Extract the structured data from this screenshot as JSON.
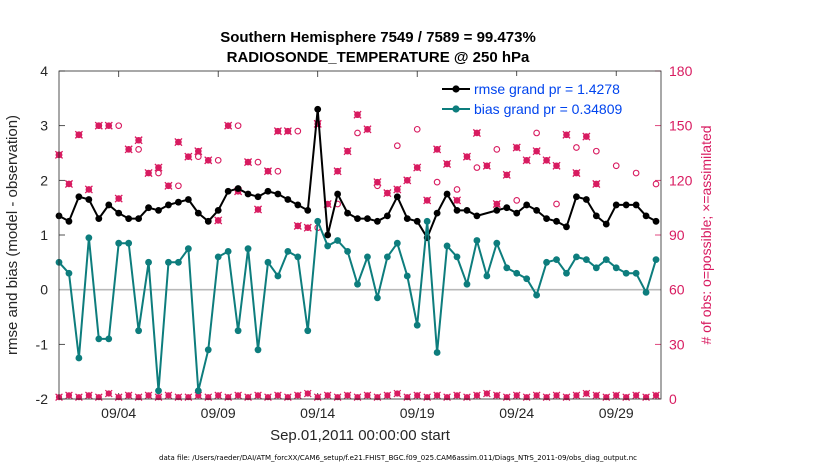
{
  "chart_data": {
    "type": "line",
    "title": "Southern Hemisphere 7549 / 7589 = 99.473%",
    "subtitle": "RADIOSONDE_TEMPERATURE @ 250 hPa",
    "xlabel": "Sep.01,2011 00:00:00 start",
    "ylabel": "rmse and bias (model - observation)",
    "y2label": "# of obs: o=possible; ×=assimilated",
    "xlim": [
      0.5,
      30.75
    ],
    "ylim": [
      -2,
      4
    ],
    "y2lim": [
      0,
      180
    ],
    "xticks": [
      3.5,
      8.5,
      13.5,
      18.5,
      23.5,
      28.5
    ],
    "xtick_labels": [
      "09/04",
      "09/09",
      "09/14",
      "09/19",
      "09/24",
      "09/29"
    ],
    "yticks": [
      -2,
      -1,
      0,
      1,
      2,
      3,
      4
    ],
    "ytick_labels": [
      "-2",
      "-1",
      "0",
      "1",
      "2",
      "3",
      "4"
    ],
    "y2ticks": [
      0,
      30,
      60,
      90,
      120,
      150,
      180
    ],
    "y2tick_labels": [
      "0",
      "30",
      "60",
      "90",
      "120",
      "150",
      "180"
    ],
    "x_start": 0.5,
    "x_step": 0.5,
    "series": [
      {
        "name": "rmse grand pr = 1.4278",
        "color": "#000000",
        "values": [
          1.35,
          1.25,
          1.7,
          1.65,
          1.3,
          1.55,
          1.4,
          1.3,
          1.3,
          1.5,
          1.45,
          1.55,
          1.6,
          1.65,
          1.4,
          1.25,
          1.45,
          1.8,
          1.85,
          1.75,
          1.7,
          1.8,
          1.75,
          1.65,
          1.55,
          1.45,
          1.55,
          1.35,
          1.3,
          1.4,
          1.3,
          1.3,
          1.25,
          1.35,
          1.7,
          1.3,
          1.25,
          1.3,
          1.2,
          1.7,
          1.45,
          1.45,
          1.35,
          null,
          1.45,
          1.5,
          1.4,
          1.55,
          1.45,
          1.3,
          1.25,
          1.55,
          1.45,
          1.3,
          1.35,
          1.2,
          1.55,
          1.55,
          1.55,
          1.35,
          1.25,
          1.2,
          1.15,
          1.0,
          1.45,
          1.35,
          1.45,
          1.45,
          1.55,
          1.5,
          1.3,
          1.25,
          1.2,
          1.1,
          1.5,
          1.6,
          1.3,
          1.25,
          1.2,
          1.1,
          1.25,
          1.4,
          1.55,
          1.6,
          1.55,
          1.45,
          1.4,
          1.3,
          1.2,
          1.35,
          1.45,
          1.35,
          1.25,
          1.3,
          1.25,
          1.25,
          1.35,
          1.5,
          1.4,
          1.3,
          1.2,
          1.15,
          1.2,
          1.3,
          1.6,
          1.45,
          1.3,
          1.25,
          1.4,
          1.5,
          1.45,
          1.55,
          1.6,
          1.45,
          1.4,
          1.45,
          1.3,
          1.2,
          1.35,
          1.3,
          1.25,
          1.25
        ],
        "overrides": [
          [
            13.5,
            3.3
          ],
          [
            14.5,
            1.75
          ],
          [
            14.0,
            1.0
          ],
          [
            19.0,
            0.95
          ],
          [
            19.5,
            1.4
          ],
          [
            20.0,
            1.75
          ],
          [
            26.0,
            1.15
          ],
          [
            26.5,
            1.7
          ],
          [
            27.0,
            1.65
          ]
        ]
      },
      {
        "name": "bias grand pr = 0.34809",
        "color": "#0d7d7d",
        "values": [
          0.5,
          0.3,
          -1.25,
          0.95,
          0.3,
          -0.9,
          0.6,
          0.85,
          0.95,
          0.5,
          -0.75,
          0.5,
          0.5,
          0.5,
          -1.85,
          0.6,
          0.6,
          0.6,
          0.55,
          0.75,
          -1.1,
          0.5,
          0.5,
          0.7,
          0.35,
          -0.75,
          0.5,
          0.6,
          0.55,
          0.7,
          0.1,
          0.6,
          -0.15,
          0.6,
          0.85,
          0.25,
          0.8,
          1.25,
          0.3,
          0.8,
          0.6,
          0.1,
          0.9,
          0.25,
          0.3,
          0.4,
          0.3,
          0.2,
          0.05,
          0.5,
          0.55,
          0.4,
          0.5,
          0.35,
          0.4,
          0.55,
          0.4,
          0.3,
          0.3,
          -0.05,
          0.45,
          0.45,
          0.05,
          -0.65,
          0.3,
          0.2,
          0.45,
          -1.15,
          0.5,
          0.55,
          0.6,
          0.55,
          0.3,
          0.6,
          0.65,
          0.4,
          0.8,
          0.45,
          0.35,
          0.5,
          0.6,
          0.85,
          0.55,
          0.55,
          0.45,
          0.4,
          0.2,
          0.55,
          -0.1,
          0.3,
          0.6,
          0.55,
          0.5,
          0.05,
          0.3,
          0.5,
          0.35,
          0.4,
          0.5,
          0.6,
          0.3,
          0.35,
          0.35,
          0.5,
          0.4,
          -0.05,
          0.6,
          0.4,
          0.35,
          0.5,
          0.45,
          0.3,
          0.35,
          0.3,
          0.25,
          0.35,
          0.3,
          0.1,
          -0.05,
          0.55,
          0.45
        ],
        "overrides": [
          [
            1.5,
            -1.25
          ],
          [
            2.5,
            -0.9
          ],
          [
            3.5,
            0.85
          ],
          [
            4.5,
            -0.75
          ],
          [
            5.5,
            -1.85
          ],
          [
            7.0,
            0.75
          ],
          [
            8.0,
            -1.1
          ],
          [
            9.0,
            0.7
          ],
          [
            9.5,
            -0.75
          ],
          [
            11.5,
            0.25
          ],
          [
            12.5,
            0.6
          ],
          [
            13.5,
            1.25
          ],
          [
            14.0,
            0.8
          ],
          [
            14.5,
            0.9
          ],
          [
            18.5,
            -0.65
          ],
          [
            19.5,
            -1.15
          ],
          [
            22.5,
            0.85
          ],
          [
            24.5,
            -0.1
          ],
          [
            26.0,
            0.3
          ],
          [
            26.5,
            0.6
          ],
          [
            27.0,
            0.55
          ],
          [
            30.0,
            -0.05
          ],
          [
            30.5,
            0.55
          ]
        ]
      }
    ],
    "obs_possible": {
      "name": "possible",
      "marker": "o",
      "color": "#d81b60",
      "values": [
        133,
        118,
        147,
        116,
        152,
        151,
        96,
        118,
        141,
        146,
        104,
        113,
        144,
        132,
        131,
        105,
        122,
        99,
        136,
        135,
        134,
        103,
        102,
        133,
        115,
        97,
        120,
        141,
        145,
        115,
        146,
        145,
        117,
        118,
        139,
        117,
        125,
        108,
        115,
        143,
        144,
        146,
        119,
        131,
        110,
        153,
        138,
        135,
        149,
        105,
        144,
        118,
        139,
        118,
        107,
        115,
        99,
        121,
        109,
        119,
        105,
        113,
        128,
        122,
        137,
        123,
        142,
        105,
        131,
        140,
        137,
        140,
        126,
        123,
        100,
        117,
        106,
        118,
        124,
        114,
        109,
        108,
        124,
        123,
        147,
        119,
        136,
        134,
        104,
        101,
        115,
        127,
        111,
        139,
        148,
        142,
        141,
        121,
        120,
        140,
        138,
        130,
        117,
        144,
        124,
        152,
        139,
        121,
        131,
        138,
        104,
        133,
        112,
        145,
        150,
        107,
        116,
        136,
        117,
        121,
        115,
        145,
        117,
        130
      ],
      "overrides": [
        [
          0.5,
          134
        ],
        [
          1.0,
          118
        ],
        [
          1.5,
          145
        ],
        [
          2.0,
          115
        ],
        [
          2.5,
          150
        ],
        [
          3.5,
          150
        ],
        [
          4.0,
          110
        ],
        [
          4.5,
          137
        ],
        [
          5.0,
          142
        ],
        [
          5.5,
          124
        ],
        [
          6.0,
          127
        ],
        [
          6.5,
          117
        ],
        [
          7.0,
          141
        ],
        [
          7.5,
          133
        ],
        [
          8.0,
          136
        ],
        [
          8.5,
          131
        ],
        [
          9.0,
          98
        ],
        [
          9.5,
          150
        ],
        [
          10.0,
          114
        ],
        [
          10.5,
          130
        ],
        [
          11.0,
          104
        ],
        [
          11.5,
          125
        ],
        [
          12.0,
          147
        ],
        [
          12.5,
          147
        ],
        [
          13.0,
          95
        ],
        [
          13.5,
          94
        ],
        [
          14.0,
          151
        ],
        [
          14.5,
          107
        ],
        [
          15.0,
          125
        ],
        [
          16.0,
          136
        ],
        [
          17.0,
          156
        ],
        [
          18.5,
          148
        ],
        [
          19.5,
          119
        ],
        [
          20.0,
          113
        ],
        [
          20.5,
          115
        ],
        [
          21.0,
          120
        ],
        [
          21.5,
          127
        ],
        [
          22.0,
          109
        ],
        [
          22.5,
          137
        ],
        [
          23.0,
          129
        ],
        [
          23.5,
          109
        ],
        [
          24.0,
          133
        ],
        [
          24.5,
          146
        ],
        [
          25.0,
          128
        ],
        [
          25.5,
          107
        ],
        [
          26.0,
          123
        ],
        [
          26.5,
          138
        ],
        [
          27.0,
          131
        ],
        [
          27.5,
          136
        ],
        [
          28.0,
          131
        ],
        [
          28.5,
          128
        ],
        [
          29.0,
          145
        ],
        [
          29.5,
          124
        ],
        [
          30.0,
          144
        ],
        [
          30.5,
          118
        ]
      ]
    },
    "obs_assimilated": {
      "name": "assimilated",
      "marker": "x",
      "color": "#d81b60",
      "values": [
        134,
        118,
        145,
        115,
        150,
        150,
        110,
        137,
        142,
        124,
        127,
        117,
        141,
        133,
        136,
        131,
        98,
        150,
        114,
        130,
        104,
        125,
        147,
        147,
        95,
        94,
        151,
        107,
        125,
        136,
        156,
        148,
        119,
        113,
        115,
        120,
        127,
        109,
        137,
        129,
        109,
        133,
        146,
        128,
        107,
        123,
        138,
        131,
        136,
        131,
        128,
        145,
        124,
        144,
        118
      ],
      "x_from": 0.5
    },
    "obs_low": {
      "name": "low count",
      "color": "#d81b60",
      "values": [
        1,
        2,
        1,
        2,
        1,
        3,
        1,
        2,
        1,
        2,
        1,
        2,
        1,
        1,
        2,
        1,
        2,
        1,
        2,
        1,
        2,
        1,
        2,
        1,
        2,
        3,
        1,
        2,
        1,
        2,
        1,
        2,
        1,
        2,
        3,
        1,
        2,
        1,
        2,
        1,
        2,
        1,
        2,
        3,
        2,
        1,
        2,
        1,
        2,
        1,
        2,
        1,
        2,
        3,
        2,
        1,
        2,
        1,
        2,
        1,
        2
      ]
    },
    "legend": [
      {
        "label": "rmse grand pr = 1.4278",
        "color": "#000000"
      },
      {
        "label": "bias grand pr = 0.34809",
        "color": "#0d7d7d"
      }
    ],
    "legend_position": "top-right",
    "grid": false,
    "footer": "data file: /Users/raeder/DAI/ATM_forcXX/CAM6_setup/f.e21.FHIST_BGC.f09_025.CAM6assim.011/Diags_NTrS_2011-09/obs_diag_output.nc"
  }
}
